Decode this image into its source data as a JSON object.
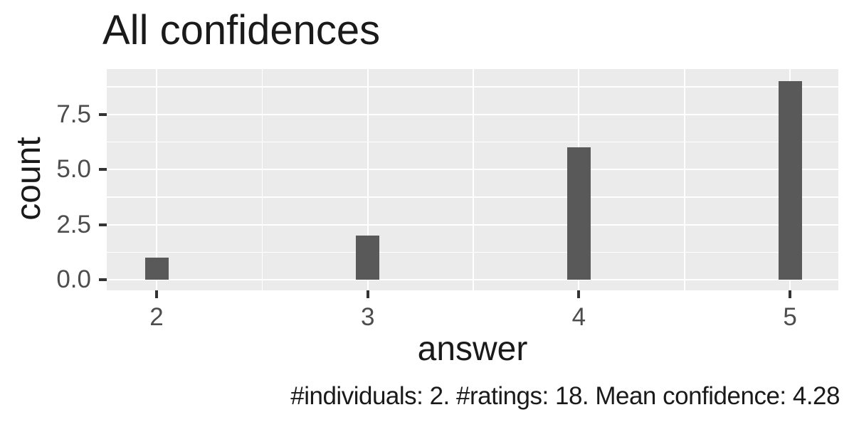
{
  "chart_data": {
    "type": "bar",
    "title": "All confidences",
    "xlabel": "answer",
    "ylabel": "count",
    "caption": "#individuals: 2. #ratings: 18. Mean confidence: 4.28",
    "categories": [
      2,
      3,
      4,
      5
    ],
    "values": [
      1,
      2,
      6,
      9
    ],
    "x_tick_labels": [
      "2",
      "3",
      "4",
      "5"
    ],
    "x_tick_values": [
      2,
      3,
      4,
      5
    ],
    "y_tick_labels": [
      "0.0",
      "2.5",
      "5.0",
      "7.5"
    ],
    "y_tick_values": [
      0,
      2.5,
      5,
      7.5
    ],
    "x_minor_gridlines": [
      2.5,
      3.5,
      4.5
    ],
    "y_minor_gridlines": [
      1.25,
      3.75,
      6.25,
      8.75
    ],
    "xlim": [
      1.76,
      5.23
    ],
    "ylim": [
      -0.48,
      9.55
    ],
    "grid": true,
    "legend": false,
    "colors": {
      "bar_fill": "#595959",
      "panel_background": "#EBEBEB",
      "gridline": "#FFFFFF",
      "tick_mark": "#333333",
      "tick_label": "#4D4D4D",
      "title_text": "#1A1A1A"
    },
    "stats": {
      "individuals": "2",
      "ratings": "18",
      "mean_confidence": "4.28"
    }
  }
}
